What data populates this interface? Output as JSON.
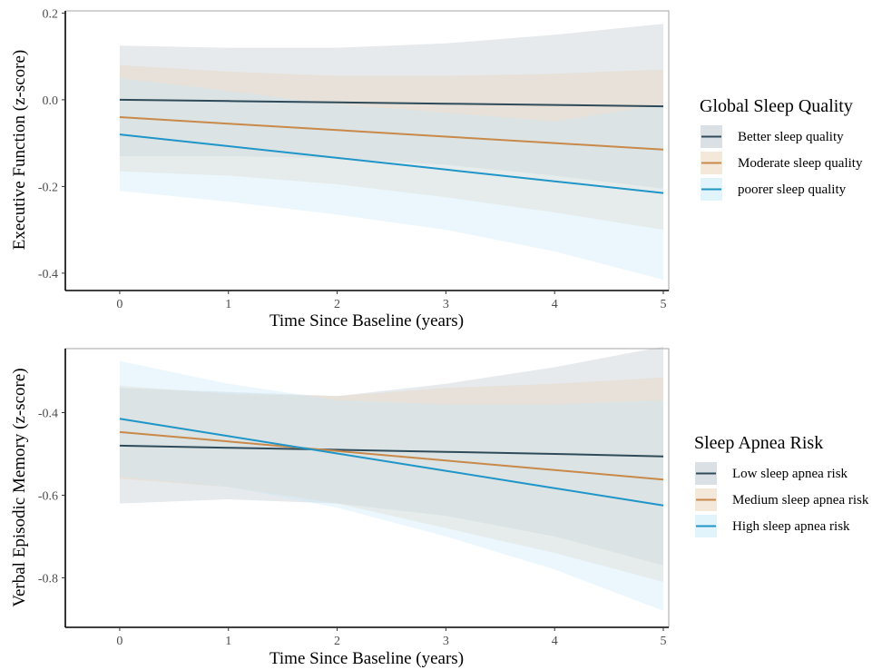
{
  "chart_data": [
    {
      "type": "line",
      "xlabel": "Time Since Baseline (years)",
      "ylabel": "Executive Function (z-score)",
      "xlim": [
        -0.5,
        5.05
      ],
      "ylim": [
        -0.44,
        0.205
      ],
      "xticks": [
        0,
        1,
        2,
        3,
        4,
        5
      ],
      "xtick_labels": [
        "0",
        "1",
        "2",
        "3",
        "4",
        "5"
      ],
      "yticks": [
        0.2,
        0.0,
        -0.2,
        -0.4
      ],
      "ytick_labels": [
        "0.2",
        "0.0",
        "-0.2",
        "-0.4"
      ],
      "grid": false,
      "legend_title": "Global Sleep Quality",
      "legend_position": "right",
      "series": [
        {
          "name": "Better sleep quality",
          "color": "#2f4b5a",
          "band_color": "#b8c2cc",
          "x": [
            0,
            1,
            2,
            3,
            4,
            5
          ],
          "y": [
            0.0,
            -0.003,
            -0.006,
            -0.009,
            -0.012,
            -0.015
          ],
          "lower": [
            -0.13,
            -0.13,
            -0.135,
            -0.15,
            -0.175,
            -0.205
          ],
          "upper": [
            0.125,
            0.12,
            0.12,
            0.13,
            0.15,
            0.175
          ]
        },
        {
          "name": "Moderate sleep quality",
          "color": "#c8894a",
          "band_color": "#e8d2b4",
          "x": [
            0,
            1,
            2,
            3,
            4,
            5
          ],
          "y": [
            -0.04,
            -0.055,
            -0.07,
            -0.085,
            -0.1,
            -0.115
          ],
          "lower": [
            -0.165,
            -0.175,
            -0.195,
            -0.225,
            -0.26,
            -0.3
          ],
          "upper": [
            0.08,
            0.065,
            0.055,
            0.055,
            0.06,
            0.07
          ]
        },
        {
          "name": "poorer sleep quality",
          "color": "#1f95c8",
          "band_color": "#c5e9f8",
          "x": [
            0,
            1,
            2,
            3,
            4,
            5
          ],
          "y": [
            -0.08,
            -0.107,
            -0.134,
            -0.161,
            -0.188,
            -0.215
          ],
          "lower": [
            -0.21,
            -0.235,
            -0.265,
            -0.3,
            -0.35,
            -0.415
          ],
          "upper": [
            0.05,
            0.02,
            -0.01,
            -0.03,
            -0.05,
            -0.01
          ]
        }
      ]
    },
    {
      "type": "line",
      "xlabel": "Time Since Baseline (years)",
      "ylabel": "Verbal Episodic Memory (z-score)",
      "xlim": [
        -0.5,
        5.05
      ],
      "ylim": [
        -0.92,
        -0.245
      ],
      "xticks": [
        0,
        1,
        2,
        3,
        4,
        5
      ],
      "xtick_labels": [
        "0",
        "1",
        "2",
        "3",
        "4",
        "5"
      ],
      "yticks": [
        -0.4,
        -0.6,
        -0.8
      ],
      "ytick_labels": [
        "-0.4",
        "-0.6",
        "-0.8"
      ],
      "grid": false,
      "legend_title": "Sleep Apnea Risk",
      "legend_position": "right",
      "series": [
        {
          "name": "Low sleep apnea risk",
          "color": "#2f4b5a",
          "band_color": "#b8c2cc",
          "x": [
            0,
            1,
            2,
            3,
            4,
            5
          ],
          "y": [
            -0.48,
            -0.485,
            -0.49,
            -0.495,
            -0.5,
            -0.506
          ],
          "lower": [
            -0.62,
            -0.61,
            -0.62,
            -0.65,
            -0.7,
            -0.77
          ],
          "upper": [
            -0.34,
            -0.35,
            -0.36,
            -0.33,
            -0.29,
            -0.24
          ]
        },
        {
          "name": "Medium sleep apnea risk",
          "color": "#c8894a",
          "band_color": "#e8d2b4",
          "x": [
            0,
            1,
            2,
            3,
            4,
            5
          ],
          "y": [
            -0.447,
            -0.47,
            -0.493,
            -0.516,
            -0.539,
            -0.562
          ],
          "lower": [
            -0.56,
            -0.58,
            -0.62,
            -0.68,
            -0.74,
            -0.81
          ],
          "upper": [
            -0.335,
            -0.355,
            -0.36,
            -0.34,
            -0.33,
            -0.315
          ]
        },
        {
          "name": "High sleep apnea risk",
          "color": "#1f95c8",
          "band_color": "#c5e9f8",
          "x": [
            0,
            1,
            2,
            3,
            4,
            5
          ],
          "y": [
            -0.415,
            -0.457,
            -0.499,
            -0.541,
            -0.583,
            -0.625
          ],
          "lower": [
            -0.555,
            -0.58,
            -0.63,
            -0.7,
            -0.78,
            -0.88
          ],
          "upper": [
            -0.275,
            -0.33,
            -0.37,
            -0.38,
            -0.38,
            -0.37
          ]
        }
      ]
    }
  ]
}
